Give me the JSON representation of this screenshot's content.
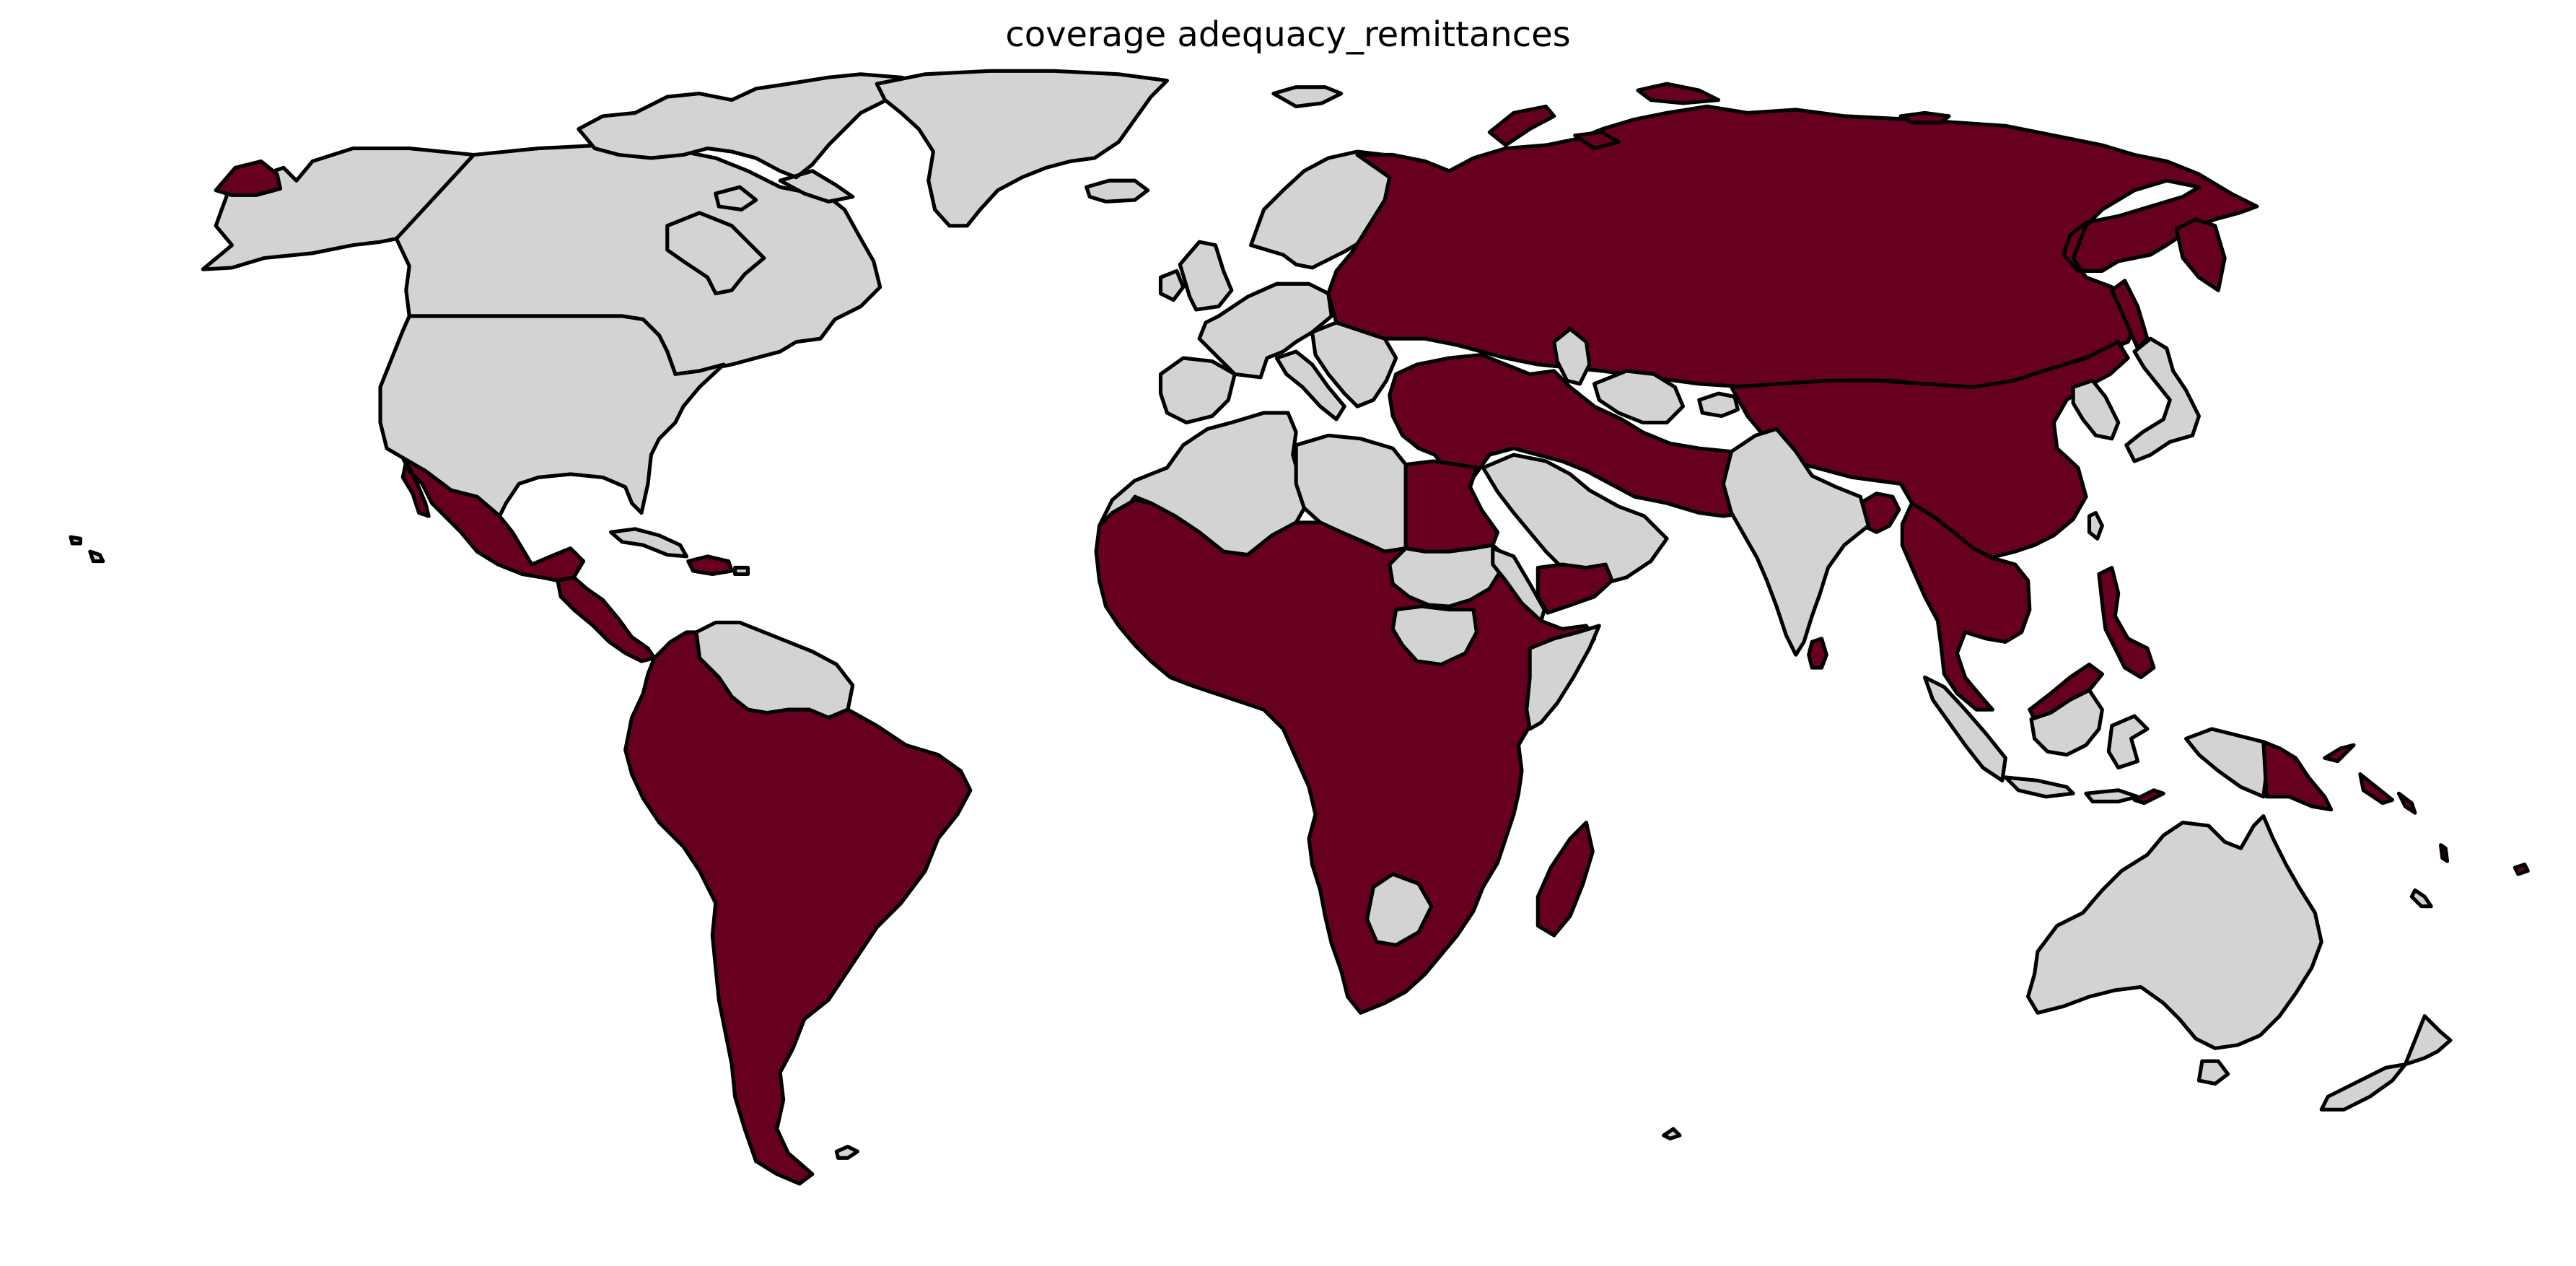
{
  "title": "coverage adequacy_remittances",
  "colors": {
    "covered": "#67001f",
    "not_covered": "#d3d3d3",
    "border": "#000000",
    "background": "#ffffff"
  },
  "regions": [
    {
      "name": "Alaska",
      "status": "not_covered"
    },
    {
      "name": "Chukotka (Russia east tip)",
      "status": "covered"
    },
    {
      "name": "Canada",
      "status": "not_covered"
    },
    {
      "name": "Canadian Arctic Islands",
      "status": "not_covered"
    },
    {
      "name": "Greenland",
      "status": "not_covered"
    },
    {
      "name": "Iceland",
      "status": "not_covered"
    },
    {
      "name": "United States",
      "status": "not_covered"
    },
    {
      "name": "Hawaii",
      "status": "not_covered"
    },
    {
      "name": "Mexico",
      "status": "covered"
    },
    {
      "name": "Central America",
      "status": "covered"
    },
    {
      "name": "Cuba",
      "status": "not_covered"
    },
    {
      "name": "Hispaniola",
      "status": "covered"
    },
    {
      "name": "Puerto Rico",
      "status": "not_covered"
    },
    {
      "name": "Guianas",
      "status": "not_covered"
    },
    {
      "name": "South America",
      "status": "covered"
    },
    {
      "name": "Falkland Islands",
      "status": "not_covered"
    },
    {
      "name": "Scandinavia",
      "status": "not_covered"
    },
    {
      "name": "Great Britain",
      "status": "not_covered"
    },
    {
      "name": "Ireland",
      "status": "not_covered"
    },
    {
      "name": "Western Europe",
      "status": "not_covered"
    },
    {
      "name": "Iberia",
      "status": "not_covered"
    },
    {
      "name": "Italy",
      "status": "not_covered"
    },
    {
      "name": "Balkans",
      "status": "not_covered"
    },
    {
      "name": "Svalbard",
      "status": "not_covered"
    },
    {
      "name": "Russia and Central Asia",
      "status": "covered"
    },
    {
      "name": "Novaya Zemlya",
      "status": "covered"
    },
    {
      "name": "Arctic Islands",
      "status": "covered"
    },
    {
      "name": "Turkey to Iran",
      "status": "covered"
    },
    {
      "name": "China and Mongolia",
      "status": "covered"
    },
    {
      "name": "Southeast Asia",
      "status": "covered"
    },
    {
      "name": "Bangladesh",
      "status": "covered"
    },
    {
      "name": "Sri Lanka",
      "status": "covered"
    },
    {
      "name": "Sakhalin",
      "status": "covered"
    },
    {
      "name": "Kamchatka",
      "status": "covered"
    },
    {
      "name": "Caspian Sea",
      "status": "not_covered"
    },
    {
      "name": "Turkmenistan",
      "status": "not_covered"
    },
    {
      "name": "Lebanon region",
      "status": "not_covered"
    },
    {
      "name": "Korea",
      "status": "not_covered"
    },
    {
      "name": "Japan",
      "status": "not_covered"
    },
    {
      "name": "Taiwan",
      "status": "not_covered"
    },
    {
      "name": "Arabian Peninsula",
      "status": "not_covered"
    },
    {
      "name": "Yemen",
      "status": "covered"
    },
    {
      "name": "India",
      "status": "not_covered"
    },
    {
      "name": "Maghreb",
      "status": "not_covered"
    },
    {
      "name": "Libya",
      "status": "not_covered"
    },
    {
      "name": "Egypt",
      "status": "covered"
    },
    {
      "name": "Sub-Saharan Africa",
      "status": "covered"
    },
    {
      "name": "Sudan",
      "status": "not_covered"
    },
    {
      "name": "South Sudan",
      "status": "not_covered"
    },
    {
      "name": "Somalia",
      "status": "not_covered"
    },
    {
      "name": "Eritrea region",
      "status": "not_covered"
    },
    {
      "name": "Botswana",
      "status": "not_covered"
    },
    {
      "name": "Madagascar",
      "status": "covered"
    },
    {
      "name": "Philippines",
      "status": "covered"
    },
    {
      "name": "Sumatra",
      "status": "not_covered"
    },
    {
      "name": "Borneo north (Malaysia)",
      "status": "covered"
    },
    {
      "name": "Borneo (Indonesia)",
      "status": "not_covered"
    },
    {
      "name": "Java",
      "status": "not_covered"
    },
    {
      "name": "Sulawesi",
      "status": "not_covered"
    },
    {
      "name": "Timor",
      "status": "covered"
    },
    {
      "name": "New Guinea (Indonesia)",
      "status": "not_covered"
    },
    {
      "name": "Papua New Guinea",
      "status": "covered"
    },
    {
      "name": "Solomon Islands",
      "status": "covered"
    },
    {
      "name": "Vanuatu",
      "status": "covered"
    },
    {
      "name": "Fiji",
      "status": "covered"
    },
    {
      "name": "New Caledonia",
      "status": "not_covered"
    },
    {
      "name": "Australia",
      "status": "not_covered"
    },
    {
      "name": "Tasmania",
      "status": "not_covered"
    },
    {
      "name": "New Zealand",
      "status": "not_covered"
    },
    {
      "name": "Antarctic islands",
      "status": "not_covered"
    }
  ]
}
